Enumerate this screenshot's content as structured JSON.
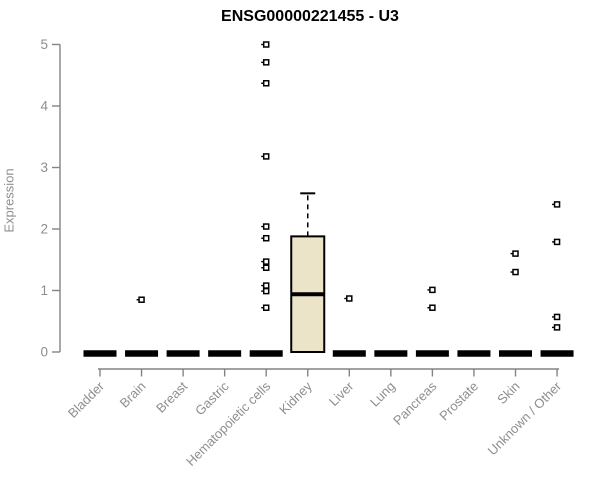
{
  "chart_data": {
    "type": "boxplot",
    "title": "ENSG00000221455 - U3",
    "xlabel": "",
    "ylabel": "Expression",
    "ylim": [
      0,
      5
    ],
    "yticks": [
      0,
      1,
      2,
      3,
      4,
      5
    ],
    "grid": false,
    "legend": null,
    "categories": [
      "Bladder",
      "Brain",
      "Breast",
      "Gastric",
      "Hematopoietic cells",
      "Kidney",
      "Liver",
      "Lung",
      "Pancreas",
      "Prostate",
      "Skin",
      "Unknown / Other"
    ],
    "series": [
      {
        "category": "Bladder",
        "q1": 0,
        "median": 0,
        "q3": 0,
        "whisker_low": 0,
        "whisker_high": 0,
        "outliers": []
      },
      {
        "category": "Brain",
        "q1": 0,
        "median": 0,
        "q3": 0,
        "whisker_low": 0,
        "whisker_high": 0,
        "outliers": [
          0.85
        ]
      },
      {
        "category": "Breast",
        "q1": 0,
        "median": 0,
        "q3": 0,
        "whisker_low": 0,
        "whisker_high": 0,
        "outliers": []
      },
      {
        "category": "Gastric",
        "q1": 0,
        "median": 0,
        "q3": 0,
        "whisker_low": 0,
        "whisker_high": 0,
        "outliers": []
      },
      {
        "category": "Hematopoietic cells",
        "q1": 0,
        "median": 0,
        "q3": 0,
        "whisker_low": 0,
        "whisker_high": 0,
        "outliers": [
          5.0,
          4.71,
          4.37,
          3.18,
          2.04,
          1.85,
          1.47,
          1.37,
          1.08,
          0.99,
          0.72
        ]
      },
      {
        "category": "Kidney",
        "q1": 0,
        "median": 0.94,
        "q3": 1.88,
        "whisker_low": 0,
        "whisker_high": 2.58,
        "outliers": []
      },
      {
        "category": "Liver",
        "q1": 0,
        "median": 0,
        "q3": 0,
        "whisker_low": 0,
        "whisker_high": 0,
        "outliers": [
          0.87
        ]
      },
      {
        "category": "Lung",
        "q1": 0,
        "median": 0,
        "q3": 0,
        "whisker_low": 0,
        "whisker_high": 0,
        "outliers": []
      },
      {
        "category": "Pancreas",
        "q1": 0,
        "median": 0,
        "q3": 0,
        "whisker_low": 0,
        "whisker_high": 0,
        "outliers": [
          1.01,
          0.72
        ]
      },
      {
        "category": "Prostate",
        "q1": 0,
        "median": 0,
        "q3": 0,
        "whisker_low": 0,
        "whisker_high": 0,
        "outliers": []
      },
      {
        "category": "Skin",
        "q1": 0,
        "median": 0,
        "q3": 0,
        "whisker_low": 0,
        "whisker_high": 0,
        "outliers": [
          1.6,
          1.3
        ]
      },
      {
        "category": "Unknown / Other",
        "q1": 0,
        "median": 0,
        "q3": 0,
        "whisker_low": 0,
        "whisker_high": 0,
        "outliers": [
          2.4,
          1.79,
          0.57,
          0.4
        ]
      }
    ],
    "colors": {
      "box_fill": "#ece4c8",
      "box_border": "#000000",
      "collapsed_box": "#000000",
      "outlier_stroke": "#000000",
      "outlier_fill": "#ffffff",
      "axis": "#848484",
      "tick_label": "#8e8e8e",
      "title": "#000000",
      "background": "#ffffff"
    }
  }
}
